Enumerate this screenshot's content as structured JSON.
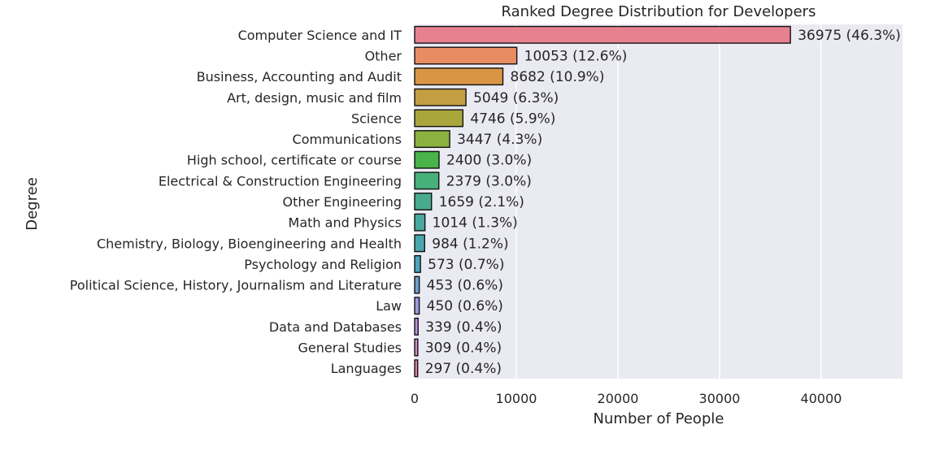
{
  "chart_data": {
    "type": "bar",
    "orientation": "horizontal",
    "title": "Ranked Degree Distribution for Developers",
    "xlabel": "Number of People",
    "ylabel": "Degree",
    "xlim": [
      0,
      48000
    ],
    "xticks": [
      0,
      10000,
      20000,
      30000,
      40000
    ],
    "grid": true,
    "categories": [
      "Computer Science and IT",
      "Other",
      "Business, Accounting and Audit",
      "Art, design, music and film",
      "Science",
      "Communications",
      "High school, certificate or course",
      "Electrical & Construction Engineering",
      "Other Engineering",
      "Math and Physics",
      "Chemistry, Biology, Bioengineering and Health",
      "Psychology and Religion",
      "Political Science, History, Journalism and Literature",
      "Law",
      "Data and Databases",
      "General Studies",
      "Languages"
    ],
    "values": [
      36975,
      10053,
      8682,
      5049,
      4746,
      3447,
      2400,
      2379,
      1659,
      1014,
      984,
      573,
      453,
      450,
      339,
      309,
      297
    ],
    "labels": [
      "36975 (46.3%)",
      "10053 (12.6%)",
      "8682 (10.9%)",
      "5049 (6.3%)",
      "4746 (5.9%)",
      "3447 (4.3%)",
      "2400 (3.0%)",
      "2379 (3.0%)",
      "1659 (2.1%)",
      "1014 (1.3%)",
      "984 (1.2%)",
      "573 (0.7%)",
      "453 (0.6%)",
      "450 (0.6%)",
      "339 (0.4%)",
      "309 (0.4%)",
      "297 (0.4%)"
    ],
    "colors": [
      "#e8818f",
      "#e88c63",
      "#d99544",
      "#c49e42",
      "#a9a73c",
      "#8bb23e",
      "#48b449",
      "#48b07a",
      "#48ab8e",
      "#48a89d",
      "#4aa6ad",
      "#4ca6bf",
      "#6aa0d6",
      "#9b9ae3",
      "#c18fe1",
      "#da87d1",
      "#e17fb4"
    ]
  }
}
